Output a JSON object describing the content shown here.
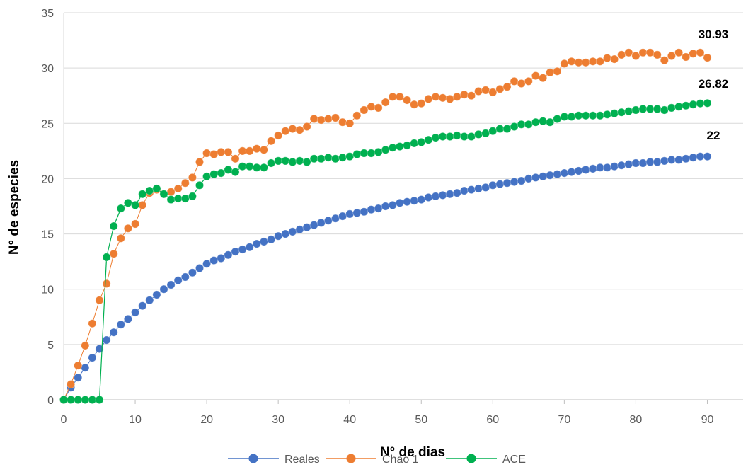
{
  "chart_data": {
    "type": "line",
    "title": "",
    "xlabel": "N° de dias",
    "ylabel": "N° de especies",
    "xlim": [
      0,
      95
    ],
    "ylim": [
      0,
      35
    ],
    "xticks": [
      0,
      10,
      20,
      30,
      40,
      50,
      60,
      70,
      80,
      90
    ],
    "yticks": [
      0,
      5,
      10,
      15,
      20,
      25,
      30,
      35
    ],
    "grid": "horizontal",
    "legend_position": "bottom",
    "x": [
      0,
      1,
      2,
      3,
      4,
      5,
      6,
      7,
      8,
      9,
      10,
      11,
      12,
      13,
      14,
      15,
      16,
      17,
      18,
      19,
      20,
      21,
      22,
      23,
      24,
      25,
      26,
      27,
      28,
      29,
      30,
      31,
      32,
      33,
      34,
      35,
      36,
      37,
      38,
      39,
      40,
      41,
      42,
      43,
      44,
      45,
      46,
      47,
      48,
      49,
      50,
      51,
      52,
      53,
      54,
      55,
      56,
      57,
      58,
      59,
      60,
      61,
      62,
      63,
      64,
      65,
      66,
      67,
      68,
      69,
      70,
      71,
      72,
      73,
      74,
      75,
      76,
      77,
      78,
      79,
      80,
      81,
      82,
      83,
      84,
      85,
      86,
      87,
      88,
      89,
      90
    ],
    "series": [
      {
        "name": "Reales",
        "color": "#4472C4",
        "values": [
          0,
          1.1,
          2.0,
          2.9,
          3.8,
          4.6,
          5.4,
          6.1,
          6.8,
          7.3,
          7.9,
          8.5,
          9.0,
          9.5,
          10.0,
          10.4,
          10.8,
          11.1,
          11.5,
          11.9,
          12.3,
          12.6,
          12.8,
          13.1,
          13.4,
          13.6,
          13.8,
          14.1,
          14.3,
          14.5,
          14.8,
          15.0,
          15.2,
          15.4,
          15.6,
          15.8,
          16.0,
          16.2,
          16.4,
          16.6,
          16.8,
          16.9,
          17.0,
          17.2,
          17.3,
          17.5,
          17.6,
          17.8,
          17.9,
          18.0,
          18.1,
          18.3,
          18.4,
          18.5,
          18.6,
          18.7,
          18.9,
          19.0,
          19.1,
          19.2,
          19.4,
          19.5,
          19.6,
          19.7,
          19.8,
          20.0,
          20.1,
          20.2,
          20.3,
          20.4,
          20.5,
          20.6,
          20.7,
          20.8,
          20.9,
          21.0,
          21.0,
          21.1,
          21.2,
          21.3,
          21.4,
          21.4,
          21.5,
          21.5,
          21.6,
          21.7,
          21.7,
          21.8,
          21.9,
          22.0,
          22.0
        ]
      },
      {
        "name": "Chao 1",
        "color": "#ED7D31",
        "values": [
          0,
          1.4,
          3.1,
          4.9,
          6.9,
          9.0,
          10.5,
          13.2,
          14.6,
          15.5,
          15.9,
          17.6,
          18.7,
          19.0,
          18.6,
          18.8,
          19.1,
          19.6,
          20.1,
          21.5,
          22.3,
          22.2,
          22.4,
          22.4,
          21.8,
          22.5,
          22.5,
          22.7,
          22.6,
          23.4,
          23.9,
          24.3,
          24.5,
          24.4,
          24.7,
          25.4,
          25.3,
          25.4,
          25.5,
          25.1,
          25.0,
          25.7,
          26.2,
          26.5,
          26.4,
          26.9,
          27.4,
          27.4,
          27.1,
          26.7,
          26.8,
          27.2,
          27.4,
          27.3,
          27.2,
          27.4,
          27.6,
          27.5,
          27.9,
          28.0,
          27.8,
          28.1,
          28.3,
          28.8,
          28.6,
          28.8,
          29.3,
          29.1,
          29.6,
          29.7,
          30.4,
          30.6,
          30.5,
          30.5,
          30.6,
          30.6,
          30.9,
          30.8,
          31.2,
          31.4,
          31.1,
          31.4,
          31.4,
          31.2,
          30.7,
          31.1,
          31.4,
          31.0,
          31.3,
          31.4,
          30.93
        ]
      },
      {
        "name": "ACE",
        "color": "#00B050",
        "values": [
          0,
          0,
          0,
          0,
          0,
          0,
          12.9,
          15.7,
          17.3,
          17.8,
          17.6,
          18.6,
          18.9,
          19.1,
          18.6,
          18.1,
          18.2,
          18.2,
          18.4,
          19.4,
          20.2,
          20.4,
          20.5,
          20.8,
          20.6,
          21.1,
          21.1,
          21.0,
          21.0,
          21.4,
          21.6,
          21.6,
          21.5,
          21.6,
          21.5,
          21.8,
          21.8,
          21.9,
          21.8,
          21.9,
          22.0,
          22.2,
          22.3,
          22.3,
          22.4,
          22.6,
          22.8,
          22.9,
          23.0,
          23.2,
          23.3,
          23.5,
          23.7,
          23.8,
          23.8,
          23.9,
          23.8,
          23.8,
          24.0,
          24.1,
          24.3,
          24.5,
          24.5,
          24.7,
          24.9,
          24.9,
          25.1,
          25.2,
          25.1,
          25.4,
          25.6,
          25.6,
          25.7,
          25.7,
          25.7,
          25.7,
          25.8,
          25.9,
          26.0,
          26.1,
          26.2,
          26.3,
          26.3,
          26.3,
          26.2,
          26.4,
          26.5,
          26.6,
          26.7,
          26.8,
          26.82
        ]
      }
    ],
    "end_labels": [
      "22",
      "30.93",
      "26.82"
    ]
  }
}
